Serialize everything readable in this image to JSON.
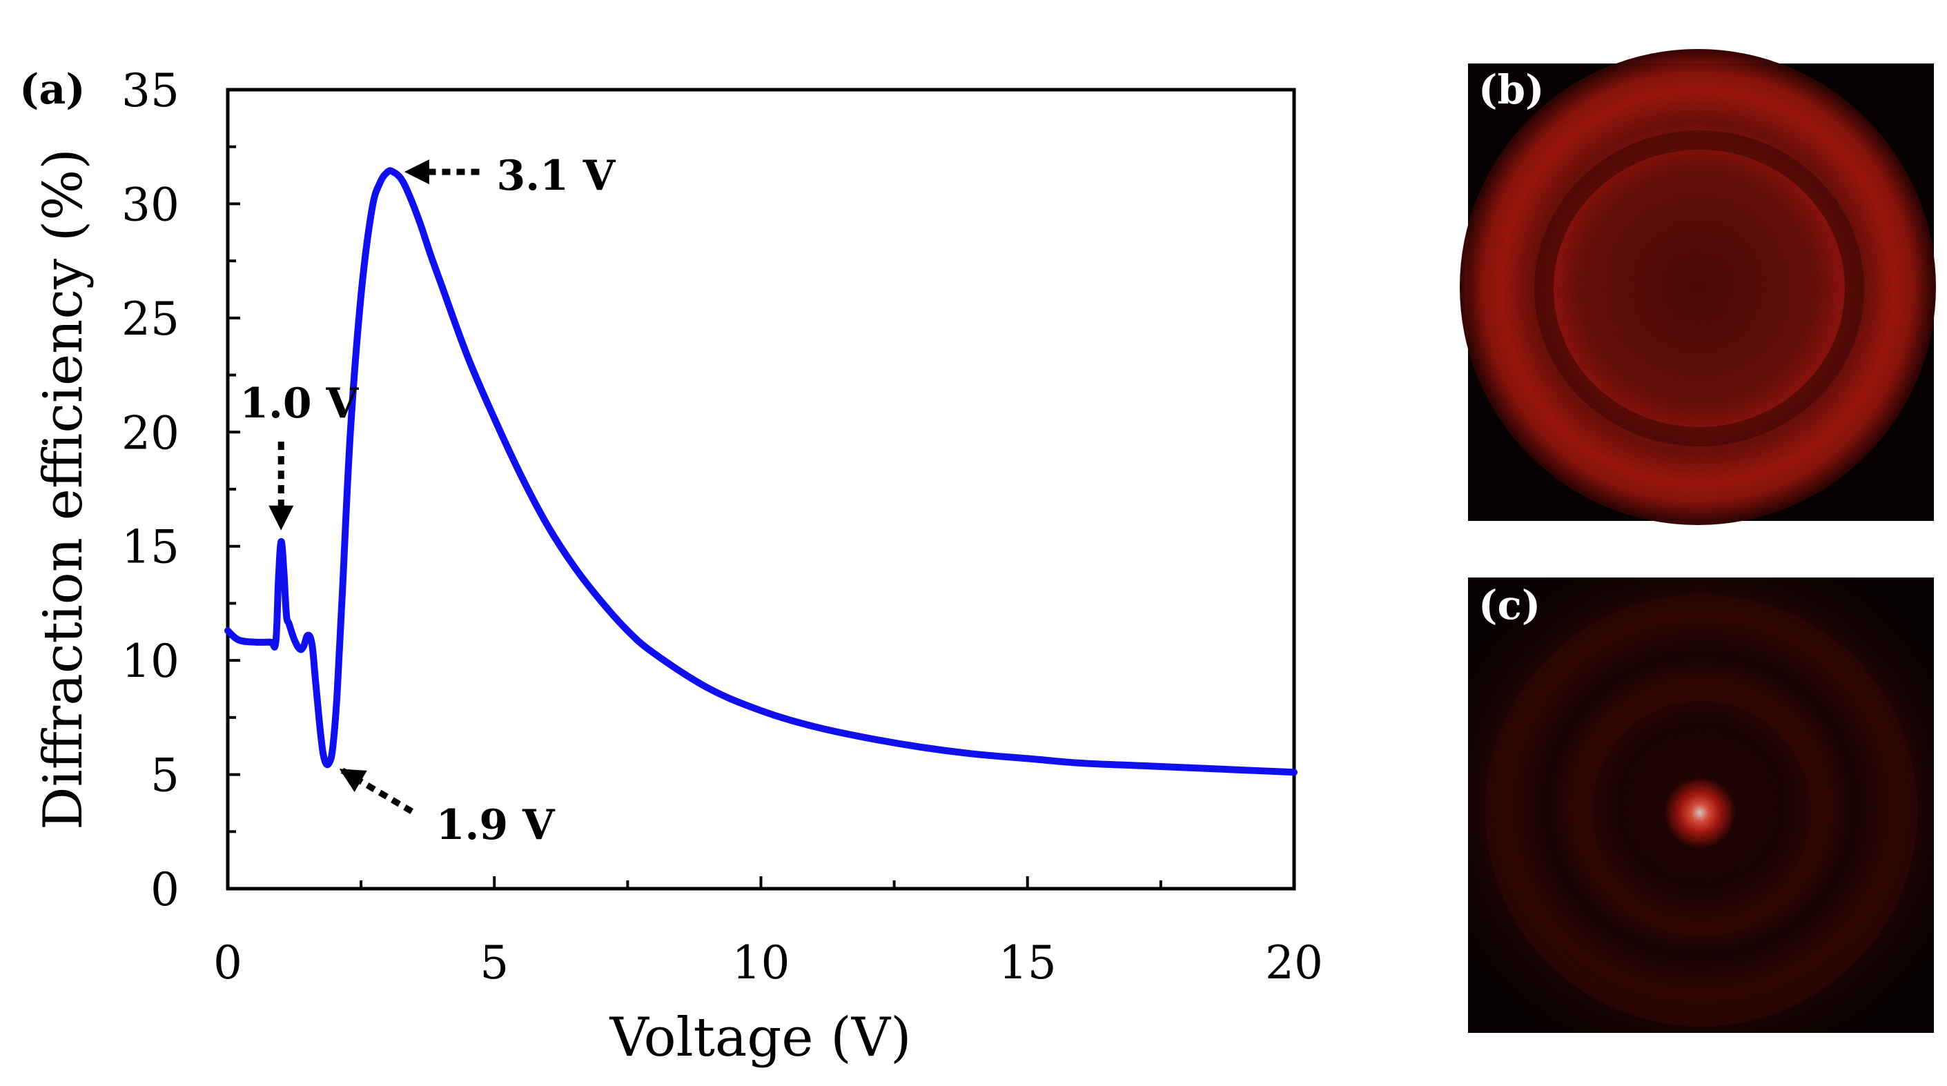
{
  "figure": {
    "panel_labels": [
      "(a)",
      "(b)",
      "(c)"
    ]
  },
  "chart_data": {
    "type": "line",
    "title": "",
    "xlabel": "Voltage (V)",
    "ylabel": "Diffraction efficiency (%)",
    "xlim": [
      0,
      20
    ],
    "ylim": [
      0,
      35
    ],
    "x_ticks": [
      0,
      5,
      10,
      15,
      20
    ],
    "y_ticks": [
      0,
      5,
      10,
      15,
      20,
      25,
      30,
      35
    ],
    "x_tick_labels": [
      "0",
      "5",
      "10",
      "15",
      "20"
    ],
    "y_tick_labels": [
      "0",
      "5",
      "10",
      "15",
      "20",
      "25",
      "30",
      "35"
    ],
    "grid": false,
    "legend": "none",
    "series": [
      {
        "color": "#1010ee",
        "x": [
          0,
          0.2,
          0.5,
          0.8,
          0.9,
          0.95,
          1.0,
          1.05,
          1.1,
          1.15,
          1.25,
          1.35,
          1.42,
          1.5,
          1.58,
          1.65,
          1.75,
          1.82,
          1.9,
          1.97,
          2.05,
          2.15,
          2.3,
          2.5,
          2.7,
          2.85,
          3.0,
          3.1,
          3.25,
          3.4,
          3.6,
          3.8,
          4.0,
          4.5,
          5.0,
          5.5,
          6.0,
          6.5,
          7.0,
          7.5,
          8.0,
          9.0,
          10.0,
          11.0,
          12.0,
          13.0,
          14.0,
          15.0,
          16.0,
          17.0,
          18.0,
          19.0,
          20.0
        ],
        "y": [
          11.3,
          10.9,
          10.8,
          10.8,
          10.8,
          13.5,
          15.2,
          14.0,
          12.0,
          11.6,
          10.9,
          10.5,
          10.6,
          11.1,
          10.7,
          9.0,
          6.6,
          5.6,
          5.5,
          6.2,
          8.5,
          13.0,
          20.0,
          26.0,
          29.7,
          30.9,
          31.4,
          31.4,
          31.1,
          30.4,
          29.2,
          27.8,
          26.5,
          23.3,
          20.6,
          18.1,
          15.9,
          14.1,
          12.6,
          11.3,
          10.3,
          8.8,
          7.8,
          7.1,
          6.6,
          6.2,
          5.9,
          5.7,
          5.5,
          5.4,
          5.3,
          5.2,
          5.1
        ]
      }
    ],
    "annotations": [
      {
        "text": "3.1 V",
        "x": 3.1,
        "y": 31.4,
        "arrow_direction": "left"
      },
      {
        "text": "1.0 V",
        "x": 1.0,
        "y": 15.2,
        "arrow_direction": "down"
      },
      {
        "text": "1.9 V",
        "x": 1.9,
        "y": 5.5,
        "arrow_direction": "up-left"
      }
    ]
  },
  "images": {
    "b": {
      "label": "(b)",
      "pattern": "ring",
      "tint": "#c81810",
      "background": "#0a0101"
    },
    "c": {
      "label": "(c)",
      "pattern": "central-spot",
      "tint": "#ff3a28",
      "background": "#0a0101"
    }
  }
}
